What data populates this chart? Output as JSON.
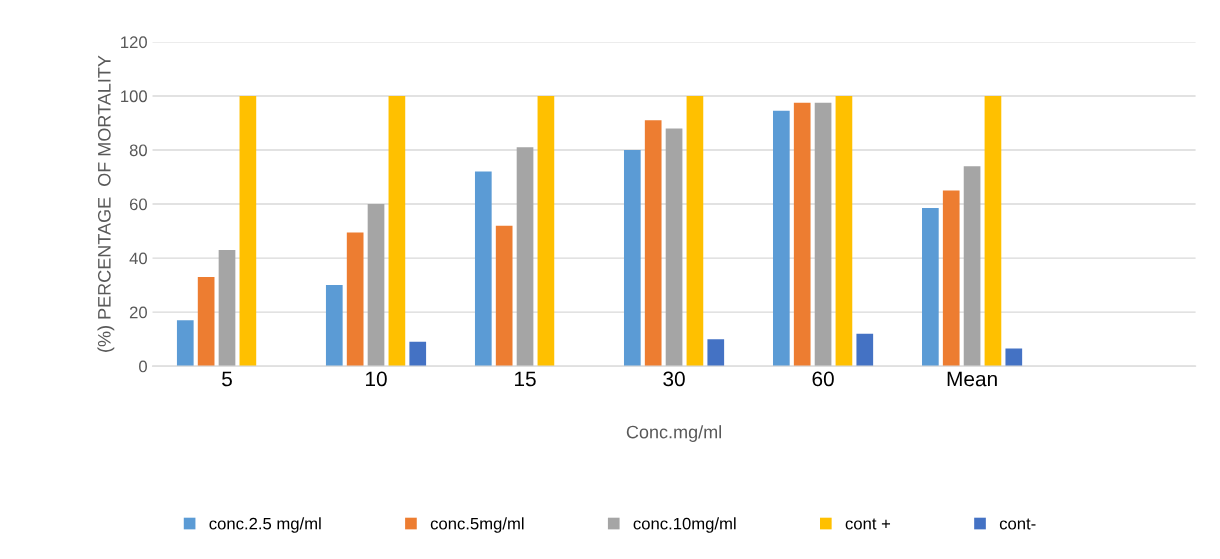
{
  "chart_data": {
    "type": "bar",
    "xlabel": "Conc.mg/ml",
    "ylabel": "(%) PERCENTAGE  OF MORTALITY",
    "categories": [
      "5",
      "10",
      "15",
      "30",
      "60",
      "Mean",
      null
    ],
    "series": [
      {
        "name": "conc.2.5 mg/ml",
        "color": "#5b9bd5",
        "values": [
          17,
          30,
          72,
          80,
          94.5,
          58.5,
          null
        ]
      },
      {
        "name": "conc.5mg/ml",
        "color": "#ed7d31",
        "values": [
          33,
          49.5,
          52,
          91,
          97.5,
          65,
          null
        ]
      },
      {
        "name": "conc.10mg/ml",
        "color": "#a5a5a5",
        "values": [
          43,
          60,
          81,
          88,
          97.5,
          74,
          null
        ]
      },
      {
        "name": "cont +",
        "color": "#ffc000",
        "values": [
          100,
          100,
          100,
          100,
          100,
          100,
          null
        ]
      },
      {
        "name": "cont-",
        "color": "#4472c4",
        "values": [
          null,
          9,
          null,
          10,
          12,
          6.5,
          null
        ]
      }
    ],
    "ylim": [
      0,
      120
    ],
    "yticks": [
      0,
      20,
      40,
      60,
      80,
      100,
      120
    ],
    "grid": "y",
    "legend": "bottom"
  }
}
